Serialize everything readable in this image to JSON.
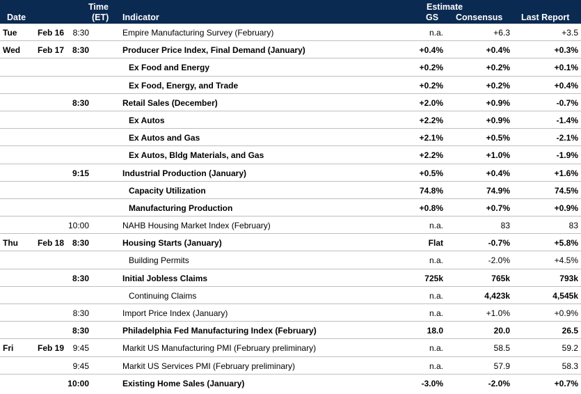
{
  "header": {
    "date": "Date",
    "time1": "Time",
    "time2": "(ET)",
    "indicator": "Indicator",
    "estimate": "Estimate",
    "gs": "GS",
    "consensus": "Consensus",
    "last": "Last Report"
  },
  "rows": [
    {
      "day": "Tue",
      "date": "Feb 16",
      "time": "8:30",
      "ind": "Empire Manufacturing Survey (February)",
      "gs": "n.a.",
      "cons": "+6.3",
      "last": "+3.5",
      "bold": false,
      "sub": false,
      "boldCons": false
    },
    {
      "day": "Wed",
      "date": "Feb 17",
      "time": "8:30",
      "ind": "Producer Price Index, Final Demand (January)",
      "gs": "+0.4%",
      "cons": "+0.4%",
      "last": "+0.3%",
      "bold": true,
      "sub": false
    },
    {
      "day": "",
      "date": "",
      "time": "",
      "ind": "Ex Food and Energy",
      "gs": "+0.2%",
      "cons": "+0.2%",
      "last": "+0.1%",
      "bold": true,
      "sub": true
    },
    {
      "day": "",
      "date": "",
      "time": "",
      "ind": "Ex Food, Energy, and Trade",
      "gs": "+0.2%",
      "cons": "+0.2%",
      "last": "+0.4%",
      "bold": true,
      "sub": true
    },
    {
      "day": "",
      "date": "",
      "time": "8:30",
      "ind": "Retail Sales (December)",
      "gs": "+2.0%",
      "cons": "+0.9%",
      "last": "-0.7%",
      "bold": true,
      "sub": false
    },
    {
      "day": "",
      "date": "",
      "time": "",
      "ind": "Ex Autos",
      "gs": "+2.2%",
      "cons": "+0.9%",
      "last": "-1.4%",
      "bold": true,
      "sub": true
    },
    {
      "day": "",
      "date": "",
      "time": "",
      "ind": "Ex Autos and Gas",
      "gs": "+2.1%",
      "cons": "+0.5%",
      "last": "-2.1%",
      "bold": true,
      "sub": true
    },
    {
      "day": "",
      "date": "",
      "time": "",
      "ind": "Ex Autos, Bldg Materials, and Gas",
      "gs": "+2.2%",
      "cons": "+1.0%",
      "last": "-1.9%",
      "bold": true,
      "sub": true
    },
    {
      "day": "",
      "date": "",
      "time": "9:15",
      "ind": "Industrial Production (January)",
      "gs": "+0.5%",
      "cons": "+0.4%",
      "last": "+1.6%",
      "bold": true,
      "sub": false
    },
    {
      "day": "",
      "date": "",
      "time": "",
      "ind": "Capacity Utilization",
      "gs": "74.8%",
      "cons": "74.9%",
      "last": "74.5%",
      "bold": true,
      "sub": true
    },
    {
      "day": "",
      "date": "",
      "time": "",
      "ind": "Manufacturing Production",
      "gs": "+0.8%",
      "cons": "+0.7%",
      "last": "+0.9%",
      "bold": true,
      "sub": true
    },
    {
      "day": "",
      "date": "",
      "time": "10:00",
      "ind": "NAHB Housing Market Index (February)",
      "gs": "n.a.",
      "cons": "83",
      "last": "83",
      "bold": false,
      "sub": false
    },
    {
      "day": "Thu",
      "date": "Feb 18",
      "time": "8:30",
      "ind": "Housing Starts (January)",
      "gs": "Flat",
      "cons": "-0.7%",
      "last": "+5.8%",
      "bold": true,
      "sub": false
    },
    {
      "day": "",
      "date": "",
      "time": "",
      "ind": "Building Permits",
      "gs": "n.a.",
      "cons": "-2.0%",
      "last": "+4.5%",
      "bold": false,
      "sub": true
    },
    {
      "day": "",
      "date": "",
      "time": "8:30",
      "ind": "Initial Jobless Claims",
      "gs": "725k",
      "cons": "765k",
      "last": "793k",
      "bold": true,
      "sub": false
    },
    {
      "day": "",
      "date": "",
      "time": "",
      "ind": "Continuing Claims",
      "gs": "n.a.",
      "cons": "4,423k",
      "last": "4,545k",
      "bold": false,
      "sub": true,
      "boldCons": true
    },
    {
      "day": "",
      "date": "",
      "time": "8:30",
      "ind": "Import Price Index (January)",
      "gs": "n.a.",
      "cons": "+1.0%",
      "last": "+0.9%",
      "bold": false,
      "sub": false
    },
    {
      "day": "",
      "date": "",
      "time": "8:30",
      "ind": "Philadelphia Fed Manufacturing Index (February)",
      "gs": "18.0",
      "cons": "20.0",
      "last": "26.5",
      "bold": true,
      "sub": false
    },
    {
      "day": "Fri",
      "date": "Feb 19",
      "time": "9:45",
      "ind": "Markit US Manufacturing PMI (February preliminary)",
      "gs": "n.a.",
      "cons": "58.5",
      "last": "59.2",
      "bold": false,
      "sub": false
    },
    {
      "day": "",
      "date": "",
      "time": "9:45",
      "ind": "Markit US Services PMI (February preliminary)",
      "gs": "n.a.",
      "cons": "57.9",
      "last": "58.3",
      "bold": false,
      "sub": false
    },
    {
      "day": "",
      "date": "",
      "time": "10:00",
      "ind": "Existing Home Sales (January)",
      "gs": "-3.0%",
      "cons": "-2.0%",
      "last": "+0.7%",
      "bold": true,
      "sub": false
    }
  ]
}
